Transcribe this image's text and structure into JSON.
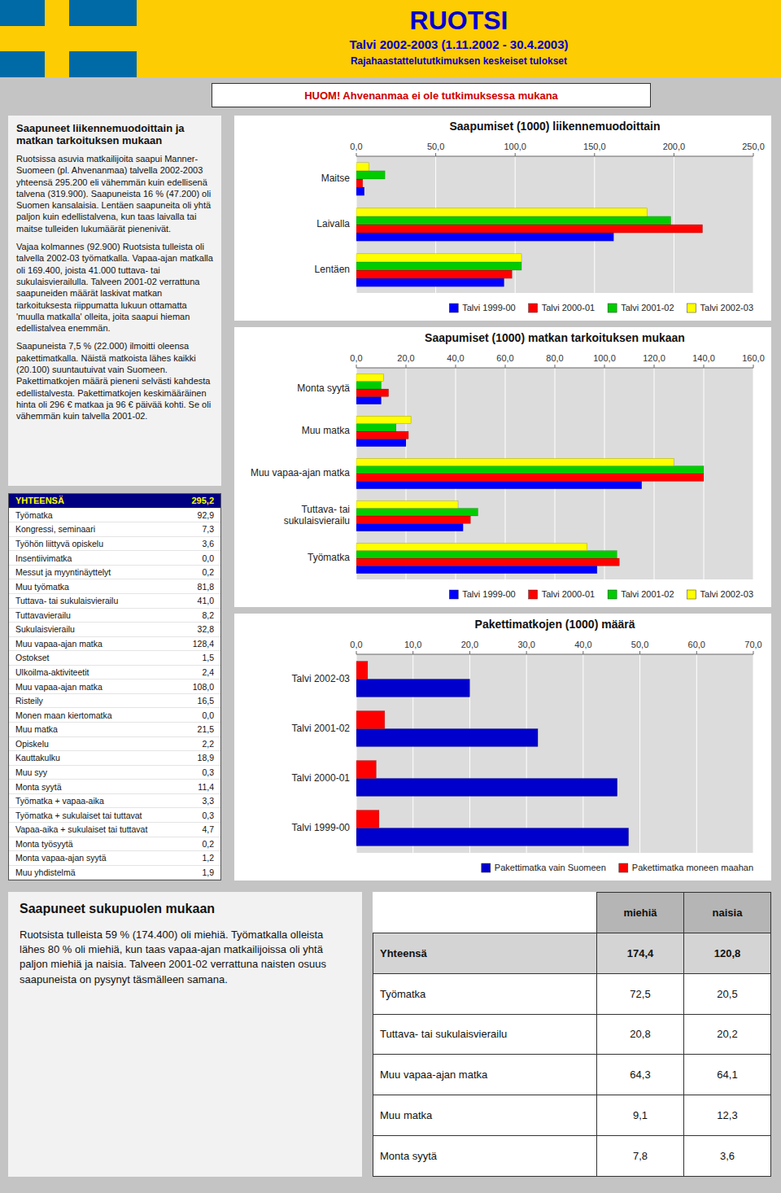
{
  "title": "RUOTSI",
  "subtitle": [
    "Talvi 2002-2003 (1.11.2002 - 30.4.2003)",
    "Rajahaastattelututkimuksen keskeiset tulokset"
  ],
  "annotations": [
    "HUOM! Ahvenanmaa ei ole tutkimuksessa mukana",
    "Saapuneet liikennemuodoittain ja\nmatkan tarkoituksen mukaan",
    "Ruotsissa asuvia matkailijoita saapui Manner-Suomeen (pl. Ahvenanmaa) talvella 2002-2003 yhteensä 295.200 eli vähemmän kuin edellisenä talvena (319.900). Saapuneista 16 % (47.200) oli Suomen kansalaisia. Lentäen saapuneita oli yhtä paljon kuin edellistalvena, kun taas laivalla tai maitse tulleiden lukumäärät pienenivät.",
    "Vajaa kolmannes (92.900) Ruotsista tulleista oli talvella 2002-03 työmatkalla. Vapaa-ajan matkalla oli 169.400, joista 41.000 tuttava- tai sukulaisvierailulla. Talveen 2001-02 verrattuna saapuneiden määrät laskivat matkan tarkoituksesta riippumatta lukuun ottamatta 'muulla matkalla' olleita, joita saapui hieman edellistalvea enemmän.",
    "Saapuneista 7,5 % (22.000) ilmoitti oleensa pakettimatkalla. Näistä matkoista lähes kaikki (20.100) suuntautuivat vain Suomeen. Pakettimatkojen määrä pieneni selvästi kahdesta edellistalvesta. Pakettimatkojen keskimääräinen hinta oli 296 € matkaa ja 96 € päivää kohti. Se oli vähemmän kuin talvella 2001-02.",
    "Saapuneet sukupuolen mukaan",
    "Ruotsista tulleista 59 % (174.400) oli miehiä. Työmatkalla olleista lähes 80 % oli miehiä, kun taas vapaa-ajan matkailijoissa oli yhtä paljon miehiä ja naisia.  Talveen 2001-02 verrattuna naisten osuus saapuneista on pysynyt täsmälleen samana."
  ],
  "chart_data": [
    {
      "type": "bar",
      "orientation": "horizontal",
      "title": "Saapumiset (1000) liikennemuodoittain",
      "categories": [
        "Lentäen",
        "Laivalla",
        "Maitse"
      ],
      "series": [
        {
          "name": "Talvi 1999-00",
          "color": "#0000FF",
          "values": [
            93.0,
            162.0,
            5.0
          ]
        },
        {
          "name": "Talvi 2000-01",
          "color": "#FF0000",
          "values": [
            98.0,
            218.0,
            4.0
          ]
        },
        {
          "name": "Talvi 2001-02",
          "color": "#00CC00",
          "values": [
            104.0,
            198.0,
            18.0
          ]
        },
        {
          "name": "Talvi 2002-03",
          "color": "#FFFF00",
          "values": [
            104.0,
            183.0,
            8.0
          ]
        }
      ],
      "xlim": [
        0,
        250
      ],
      "xticks": [
        {
          "value": 0,
          "label": "0,0"
        },
        {
          "value": 50,
          "label": "50,0"
        },
        {
          "value": 100,
          "label": "100,0"
        },
        {
          "value": 150,
          "label": "150,0"
        },
        {
          "value": 200,
          "label": "200,0"
        },
        {
          "value": 250,
          "label": "250,0"
        }
      ],
      "grid": true,
      "legend": "lower right"
    },
    {
      "type": "bar",
      "orientation": "horizontal",
      "title": "Saapumiset (1000) matkan tarkoituksen mukaan",
      "categories": [
        "Työmatkа",
        "Tuttava- tai\nsukulaisvierailu",
        "Muu vapaa-ajan matka",
        "Muu matka",
        "Monta syytä"
      ],
      "series": [
        {
          "name": "Talvi 1999-00",
          "color": "#0000FF",
          "values": [
            97.0,
            43.0,
            115.0,
            20.0,
            10.0
          ]
        },
        {
          "name": "Talvi 2000-01",
          "color": "#FF0000",
          "values": [
            106.0,
            46.0,
            140.0,
            21.0,
            13.0
          ]
        },
        {
          "name": "Talvi 2001-02",
          "color": "#00CC00",
          "values": [
            105.0,
            49.0,
            140.0,
            16.0,
            10.0
          ]
        },
        {
          "name": "Talvi 2002-03",
          "color": "#FFFF00",
          "values": [
            93.0,
            41.0,
            128.0,
            22.0,
            11.0
          ]
        }
      ],
      "xlim": [
        0,
        160
      ],
      "xticks": [
        {
          "value": 0,
          "label": "0,0"
        },
        {
          "value": 20,
          "label": "20,0"
        },
        {
          "value": 40,
          "label": "40,0"
        },
        {
          "value": 60,
          "label": "60,0"
        },
        {
          "value": 80,
          "label": "80,0"
        },
        {
          "value": 100,
          "label": "100,0"
        },
        {
          "value": 120,
          "label": "120,0"
        },
        {
          "value": 140,
          "label": "140,0"
        },
        {
          "value": 160,
          "label": "160,0"
        }
      ],
      "grid": true,
      "legend": "lower right"
    },
    {
      "type": "bar",
      "orientation": "horizontal",
      "title": "Pakettimatkojen (1000) määrä",
      "categories": [
        "Talvi 1999-00",
        "Talvi 2000-01",
        "Talvi 2001-02",
        "Talvi 2002-03"
      ],
      "series": [
        {
          "name": "Pakettimatka vain Suomeen",
          "color": "#0000CC",
          "values": [
            48.0,
            46.0,
            32.0,
            20.0
          ]
        },
        {
          "name": "Pakettimatka moneen maahan",
          "color": "#FF0000",
          "values": [
            4.0,
            3.5,
            5.0,
            2.0
          ]
        }
      ],
      "xlim": [
        0,
        70
      ],
      "xticks": [
        {
          "value": 0,
          "label": "0,0"
        },
        {
          "value": 10,
          "label": "10,0"
        },
        {
          "value": 20,
          "label": "20,0"
        },
        {
          "value": 30,
          "label": "30,0"
        },
        {
          "value": 40,
          "label": "40,0"
        },
        {
          "value": 50,
          "label": "50,0"
        },
        {
          "value": 60,
          "label": "60,0"
        },
        {
          "value": 70,
          "label": "70,0"
        }
      ],
      "grid": true,
      "legend": "lower right"
    },
    {
      "type": "table",
      "categories": [
        "YHTEENSÄ",
        "Työmatkа",
        "Kongressi, seminaari",
        "Työhön liittyvä opiskelu",
        "Insentiivimatka",
        "Messut ja myyntinäyttelyt",
        "Muu työmatkа",
        "Tuttava- tai sukulaisvierailu",
        "Tuttavavierailu",
        "Sukulaisvierailu",
        "Muu vapaa-ajan matka",
        "Ostokset",
        "Ulkoilma-aktiviteetit",
        "Muu vapaa-ajan matka",
        "Risteily",
        "Monen maan kiertomatka",
        "Muu matka",
        "Opiskelu",
        "Kauttakulku",
        "Muu syy",
        "Monta syytä",
        "Työmatkа + vapaa-aika",
        "Työmatkа + sukulaiset tai tuttavat",
        "Vapaa-aika + sukulaiset tai tuttavat",
        "Monta työsyytä",
        "Monta vapaa-ajan syytä",
        "Muu yhdistelmä"
      ],
      "values": [
        295.2,
        92.9,
        7.3,
        3.6,
        0.0,
        0.2,
        81.8,
        41.0,
        8.2,
        32.8,
        128.4,
        1.5,
        2.4,
        108.0,
        16.5,
        0.0,
        21.5,
        2.2,
        18.9,
        0.3,
        11.4,
        3.3,
        0.3,
        4.7,
        0.2,
        1.2,
        1.9
      ],
      "value_labels": [
        "295,2",
        "92,9",
        "7,3",
        "3,6",
        "0,0",
        "0,2",
        "81,8",
        "41,0",
        "8,2",
        "32,8",
        "128,4",
        "1,5",
        "2,4",
        "108,0",
        "16,5",
        "0,0",
        "21,5",
        "2,2",
        "18,9",
        "0,3",
        "11,4",
        "3,3",
        "0,3",
        "4,7",
        "0,2",
        "1,2",
        "1,9"
      ]
    },
    {
      "type": "table",
      "categories": [
        "Yhteensä",
        "Työmatkа",
        "Tuttava- tai sukulaisvierailu",
        "Muu vapaa-ajan matka",
        "Muu matka",
        "Monta syytä"
      ],
      "series": [
        {
          "name": "miehiä",
          "values": [
            174.4,
            72.5,
            20.8,
            64.3,
            9.1,
            7.8
          ],
          "value_labels": [
            "174,4",
            "72,5",
            "20,8",
            "64,3",
            "9,1",
            "7,8"
          ]
        },
        {
          "name": "naisia",
          "values": [
            120.8,
            20.5,
            20.2,
            64.1,
            12.3,
            3.6
          ],
          "value_labels": [
            "120,8",
            "20,5",
            "20,2",
            "64,1",
            "12,3",
            "3,6"
          ]
        }
      ]
    }
  ]
}
